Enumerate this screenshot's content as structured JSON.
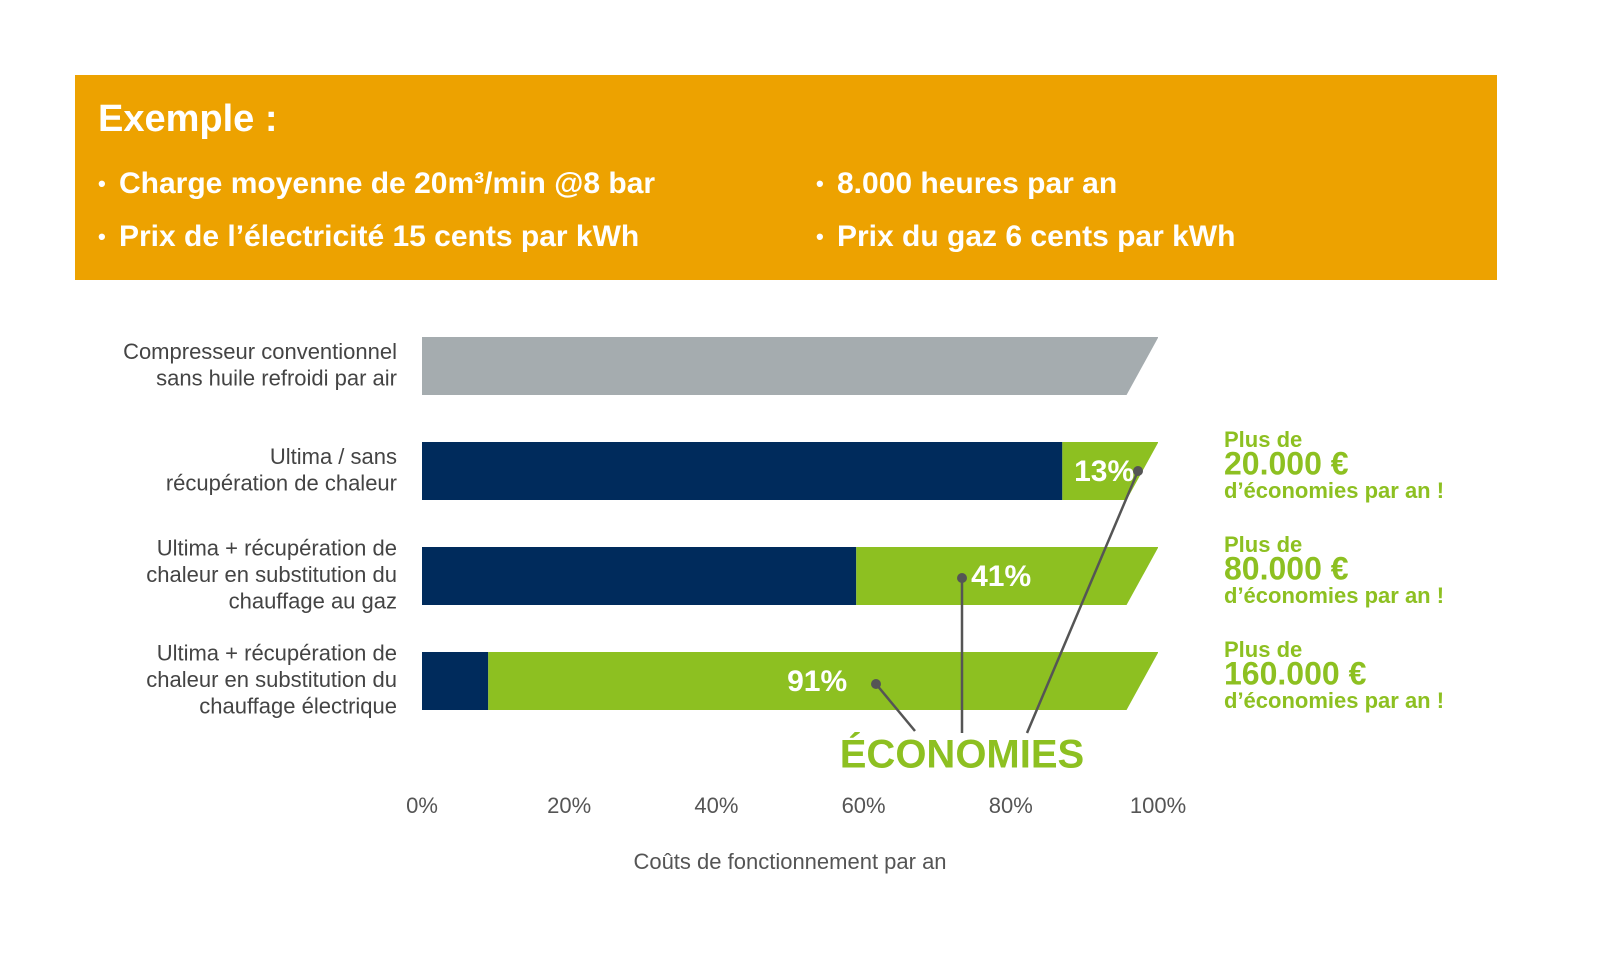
{
  "header": {
    "title": "Exemple :",
    "bullets": [
      "Charge moyenne de 20m³/min @8 bar",
      "8.000 heures par an",
      "Prix de l’électricité 15 cents par kWh",
      "Prix du gaz 6 cents par kWh"
    ]
  },
  "chart_data": {
    "type": "stacked-bar-horizontal",
    "categories": [
      [
        "Compresseur conventionnel",
        "sans huile refroidi par air"
      ],
      [
        "Ultima / sans",
        "récupération de chaleur"
      ],
      [
        "Ultima + récupération de",
        "chaleur en substitution du",
        "chauffage au gaz"
      ],
      [
        "Ultima + récupération de",
        "chaleur en substitution du",
        "chauffage électrique"
      ]
    ],
    "series": [
      {
        "colors": [
          "#a5acaf",
          "#002b5c",
          "#002b5c",
          "#002b5c"
        ],
        "values": [
          100,
          87,
          59,
          9
        ]
      },
      {
        "name": "ÉCONOMIES",
        "color": "#8dc021",
        "values": [
          0,
          13,
          41,
          91
        ],
        "value_labels": [
          null,
          "13%",
          "41%",
          "91%"
        ]
      }
    ],
    "xlim": [
      0,
      100
    ],
    "xticks": [
      {
        "value": 0,
        "label": "0%"
      },
      {
        "value": 20,
        "label": "20%"
      },
      {
        "value": 40,
        "label": "40%"
      },
      {
        "value": 60,
        "label": "60%"
      },
      {
        "value": 80,
        "label": "80%"
      },
      {
        "value": 100,
        "label": "100%"
      }
    ],
    "x_label": "Coûts de fonctionnement par an",
    "savings_notes": [
      null,
      [
        "Plus de",
        "20.000 €",
        "d’économies par an !"
      ],
      [
        "Plus de",
        "80.000 €",
        "d’économies par an !"
      ],
      [
        "Plus de",
        "160.000 €",
        "d’économies par an !"
      ]
    ]
  }
}
